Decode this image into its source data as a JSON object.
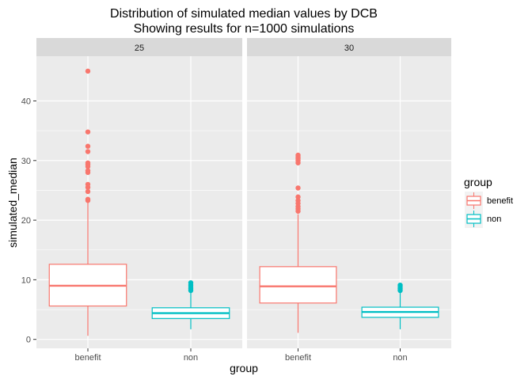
{
  "chart_data": {
    "type": "box",
    "title": "Distribution of simulated median values by DCB",
    "subtitle": "Showing results for n=1000 simulations",
    "xlabel": "group",
    "ylabel": "simulated_median",
    "ylim": [
      -1.5,
      47.5
    ],
    "yticks": [
      0,
      10,
      20,
      30,
      40
    ],
    "categories": [
      "benefit",
      "non"
    ],
    "legend": {
      "title": "group",
      "placement": "right",
      "entries": [
        {
          "label": "benefit",
          "color": "#F8766D"
        },
        {
          "label": "non",
          "color": "#00BFC4"
        }
      ]
    },
    "colors": {
      "benefit": "#F8766D",
      "non": "#00BFC4",
      "panel": "#EBEBEB",
      "grid": "#FFFFFF",
      "strip": "#D9D9D9"
    },
    "facets": [
      {
        "label": "25",
        "boxes": [
          {
            "group": "benefit",
            "min": 0.6,
            "q1": 5.6,
            "median": 9.0,
            "q3": 12.6,
            "max": 23.0,
            "outliers": [
              23.3,
              23.5,
              24.8,
              25.5,
              26.0,
              28.0,
              28.3,
              29.0,
              29.3,
              29.6,
              31.5,
              32.4,
              34.8,
              45.0
            ]
          },
          {
            "group": "non",
            "min": 1.7,
            "q1": 3.5,
            "median": 4.4,
            "q3": 5.3,
            "max": 8.0,
            "outliers": [
              8.2,
              8.5,
              8.8,
              9.1,
              9.5
            ]
          }
        ]
      },
      {
        "label": "30",
        "boxes": [
          {
            "group": "benefit",
            "min": 1.1,
            "q1": 6.1,
            "median": 8.9,
            "q3": 12.2,
            "max": 21.0,
            "outliers": [
              21.5,
              21.9,
              22.3,
              22.8,
              23.3,
              23.9,
              25.4,
              29.6,
              30.0,
              30.3,
              30.6,
              30.9
            ]
          },
          {
            "group": "non",
            "min": 1.7,
            "q1": 3.7,
            "median": 4.6,
            "q3": 5.4,
            "max": 8.0,
            "outliers": [
              8.2,
              8.5,
              8.8,
              9.1
            ]
          }
        ]
      }
    ]
  }
}
